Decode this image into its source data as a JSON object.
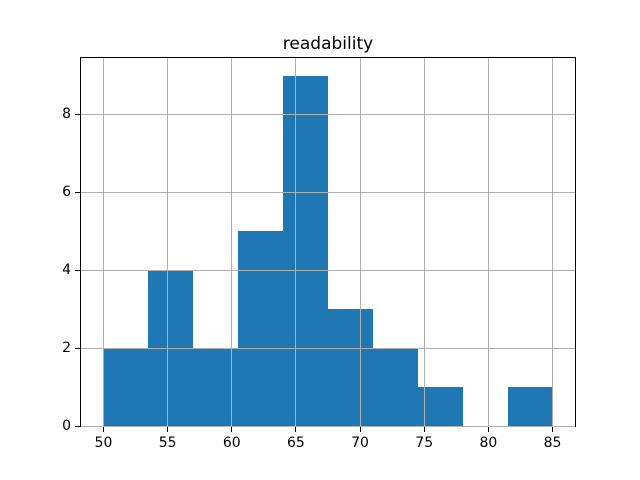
{
  "chart_data": {
    "type": "bar",
    "subtype": "histogram",
    "title": "readability",
    "xlabel": "",
    "ylabel": "",
    "bin_edges": [
      50,
      53.5,
      57,
      60.5,
      64,
      67.5,
      71,
      74.5,
      78,
      81.5,
      85
    ],
    "counts": [
      2,
      4,
      2,
      5,
      9,
      3,
      2,
      1,
      0,
      1
    ],
    "xticks": [
      50,
      55,
      60,
      65,
      70,
      75,
      80,
      85
    ],
    "yticks": [
      0,
      2,
      4,
      6,
      8
    ],
    "xlim": [
      48.25,
      86.75
    ],
    "ylim": [
      0,
      9.45
    ],
    "grid": true,
    "legend": null,
    "colors": {
      "bar": "#1f77b4",
      "grid": "#b0b0b0",
      "spine": "#000000",
      "background": "#ffffff",
      "text": "#000000"
    }
  }
}
